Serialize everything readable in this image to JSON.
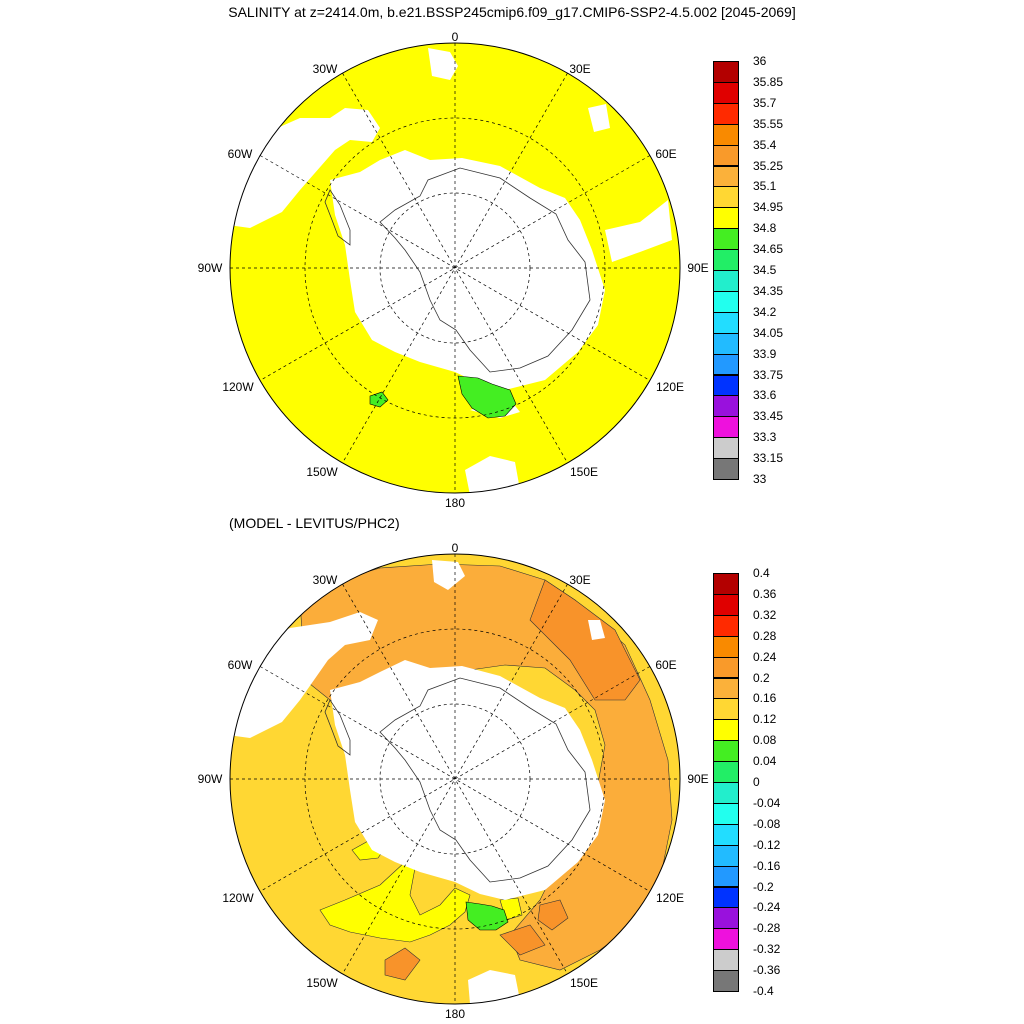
{
  "title": "SALINITY at z=2414.0m, b.e21.BSSP245cmip6.f09_g17.CMIP6-SSP2-4.5.002 [2045-2069]",
  "subtitle": "(MODEL - LEVITUS/PHC2)",
  "lon_labels": [
    "0",
    "30E",
    "60E",
    "90E",
    "120E",
    "150E",
    "180",
    "150W",
    "120W",
    "90W",
    "60W",
    "30W"
  ],
  "colors": {
    "land": "#ffffff",
    "top_field": "#ffff00",
    "top_ross_patch": "#44ee22",
    "bottom_field_main": "#ffd733",
    "bottom_field_high": "#fbad3a",
    "bottom_field_higher": "#f8932a",
    "bottom_field_low": "#ffff00",
    "bottom_ross_patch": "#44ee22"
  },
  "colorbar_top": {
    "labels": [
      "36",
      "35.85",
      "35.7",
      "35.55",
      "35.4",
      "35.25",
      "35.1",
      "34.95",
      "34.8",
      "34.65",
      "34.5",
      "34.35",
      "34.2",
      "34.05",
      "33.9",
      "33.75",
      "33.6",
      "33.45",
      "33.3",
      "33.15",
      "33"
    ],
    "colors": [
      "#b30000",
      "#e00000",
      "#ff2a00",
      "#f98a00",
      "#f99a2a",
      "#fbb13a",
      "#ffd733",
      "#ffff00",
      "#44ee22",
      "#22ee66",
      "#22eecc",
      "#22ffee",
      "#22ddff",
      "#22bbff",
      "#2299ff",
      "#0033ff",
      "#9911dd",
      "#ee11dd",
      "#cccccc",
      "#777777"
    ]
  },
  "colorbar_bottom": {
    "labels": [
      "0.4",
      "0.36",
      "0.32",
      "0.28",
      "0.24",
      "0.2",
      "0.16",
      "0.12",
      "0.08",
      "0.04",
      "0",
      "-0.04",
      "-0.08",
      "-0.12",
      "-0.16",
      "-0.2",
      "-0.24",
      "-0.28",
      "-0.32",
      "-0.36",
      "-0.4"
    ],
    "colors": [
      "#b30000",
      "#e00000",
      "#ff2a00",
      "#f98a00",
      "#f99a2a",
      "#fbb13a",
      "#ffd733",
      "#ffff00",
      "#44ee22",
      "#22ee66",
      "#22eecc",
      "#22ffee",
      "#22ddff",
      "#22bbff",
      "#2299ff",
      "#0033ff",
      "#9911dd",
      "#ee11dd",
      "#cccccc",
      "#777777"
    ]
  }
}
